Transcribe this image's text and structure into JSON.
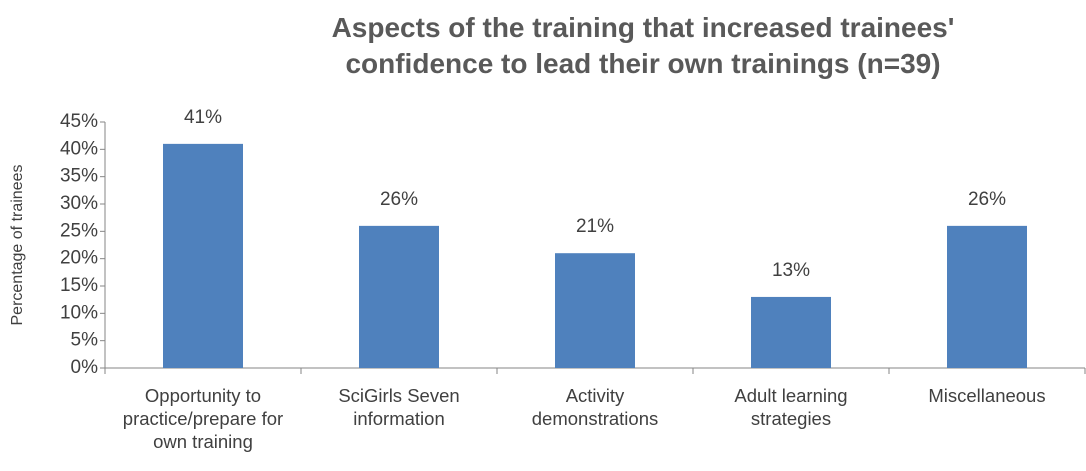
{
  "chart_data": {
    "type": "bar",
    "title": "Aspects of the training that increased trainees' confidence to lead their own trainings (n=39)",
    "y_label": "Percentage of trainees",
    "categories": [
      "Opportunity to practice/prepare for own training",
      "SciGirls Seven information",
      "Activity demonstrations",
      "Adult learning strategies",
      "Miscellaneous"
    ],
    "values": [
      41,
      26,
      21,
      13,
      26
    ],
    "value_labels": [
      "41%",
      "26%",
      "21%",
      "13%",
      "26%"
    ],
    "color": "#4f81bd",
    "ylim": [
      0,
      45
    ],
    "yticks": [
      {
        "value": 0,
        "label": "0%"
      },
      {
        "value": 5,
        "label": "5%"
      },
      {
        "value": 10,
        "label": "10%"
      },
      {
        "value": 15,
        "label": "15%"
      },
      {
        "value": 20,
        "label": "20%"
      },
      {
        "value": 25,
        "label": "25%"
      },
      {
        "value": 30,
        "label": "30%"
      },
      {
        "value": 35,
        "label": "35%"
      },
      {
        "value": 40,
        "label": "40%"
      },
      {
        "value": 45,
        "label": "45%"
      }
    ],
    "grid": false
  }
}
